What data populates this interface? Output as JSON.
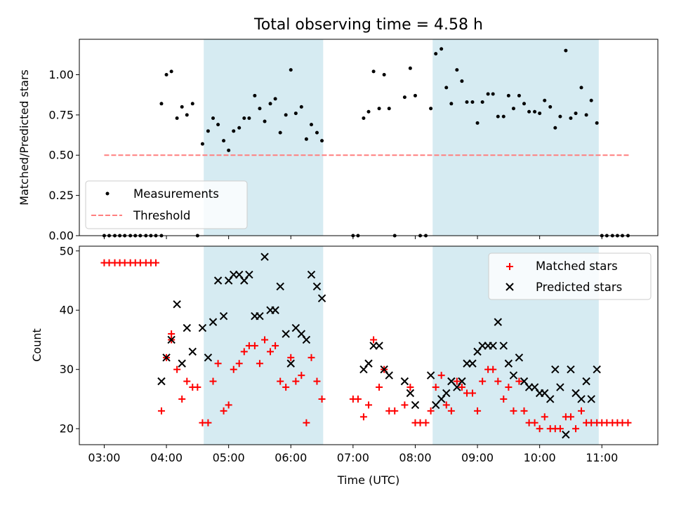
{
  "chart_data": [
    {
      "type": "scatter",
      "panel": "top",
      "title": "Total observing time = 4.58 h",
      "ylabel": "Matched/Predicted stars",
      "xlabel": "",
      "x_range_hours": [
        2.6,
        11.9
      ],
      "ylim": [
        0,
        1.22
      ],
      "yticks": [
        "0.00",
        "0.25",
        "0.50",
        "0.75",
        "1.00"
      ],
      "shaded_regions_hours": [
        [
          4.6,
          6.52
        ],
        [
          8.28,
          10.95
        ]
      ],
      "shade_color": "#add8e6",
      "legend_position": "lower left",
      "series": [
        {
          "name": "Measurements",
          "color": "#000000",
          "marker": "dot",
          "x_hours": [
            3.0,
            3.08,
            3.17,
            3.25,
            3.33,
            3.42,
            3.5,
            3.58,
            3.67,
            3.75,
            3.83,
            3.92,
            3.92,
            4.0,
            4.08,
            4.17,
            4.25,
            4.33,
            4.42,
            4.5,
            4.58,
            4.67,
            4.75,
            4.83,
            4.92,
            5.0,
            5.08,
            5.17,
            5.25,
            5.33,
            5.42,
            5.5,
            5.58,
            5.67,
            5.75,
            5.83,
            5.92,
            6.0,
            6.08,
            6.17,
            6.25,
            6.33,
            6.42,
            6.5,
            7.0,
            7.08,
            7.17,
            7.25,
            7.33,
            7.42,
            7.5,
            7.58,
            7.67,
            7.83,
            7.92,
            8.0,
            8.08,
            8.17,
            8.25,
            8.33,
            8.42,
            8.5,
            8.58,
            8.67,
            8.75,
            8.83,
            8.92,
            9.0,
            9.08,
            9.17,
            9.25,
            9.33,
            9.42,
            9.5,
            9.58,
            9.67,
            9.75,
            9.83,
            9.92,
            10.0,
            10.08,
            10.17,
            10.25,
            10.33,
            10.42,
            10.5,
            10.58,
            10.67,
            10.75,
            10.83,
            10.92,
            11.0,
            11.08,
            11.17,
            11.25,
            11.33,
            11.42
          ],
          "y": [
            0,
            0,
            0,
            0,
            0,
            0,
            0,
            0,
            0,
            0,
            0,
            0.82,
            0,
            1.0,
            1.02,
            0.73,
            0.8,
            0.75,
            0.82,
            0,
            0.57,
            0.65,
            0.73,
            0.69,
            0.59,
            0.53,
            0.65,
            0.67,
            0.73,
            0.73,
            0.87,
            0.79,
            0.71,
            0.82,
            0.85,
            0.64,
            0.75,
            1.03,
            0.76,
            0.8,
            0.6,
            0.69,
            0.64,
            0.59,
            0,
            0,
            0.73,
            0.77,
            1.02,
            0.79,
            1.0,
            0.79,
            0,
            0.86,
            1.04,
            0.87,
            0,
            0,
            0.79,
            1.13,
            1.16,
            0.92,
            0.82,
            1.03,
            0.96,
            0.83,
            0.83,
            0.7,
            0.83,
            0.88,
            0.88,
            0.74,
            0.74,
            0.87,
            0.79,
            0.87,
            0.82,
            0.77,
            0.77,
            0.76,
            0.84,
            0.8,
            0.67,
            0.74,
            1.15,
            0.73,
            0.76,
            0.92,
            0.75,
            0.84,
            0.7,
            0,
            0,
            0,
            0,
            0,
            0
          ]
        },
        {
          "name": "Threshold",
          "color": "#ff7f7f",
          "style": "dashed",
          "x_hours": [
            3.0,
            11.45
          ],
          "y": [
            0.5,
            0.5
          ]
        }
      ]
    },
    {
      "type": "scatter",
      "panel": "bottom",
      "title": "",
      "xlabel": "Time (UTC)",
      "ylabel": "Count",
      "x_range_hours": [
        2.6,
        11.9
      ],
      "xticks": [
        "03:00",
        "04:00",
        "05:00",
        "06:00",
        "07:00",
        "08:00",
        "09:00",
        "10:00",
        "11:00"
      ],
      "ylim": [
        17.3,
        50.8
      ],
      "yticks": [
        "20",
        "30",
        "40",
        "50"
      ],
      "shaded_regions_hours": [
        [
          4.6,
          6.52
        ],
        [
          8.28,
          10.95
        ]
      ],
      "shade_color": "#add8e6",
      "legend_position": "upper right",
      "series": [
        {
          "name": "Matched stars",
          "color": "#ff0000",
          "marker": "plus",
          "x_hours": [
            3.0,
            3.08,
            3.17,
            3.25,
            3.33,
            3.42,
            3.5,
            3.58,
            3.67,
            3.75,
            3.83,
            3.92,
            4.0,
            4.08,
            4.08,
            4.17,
            4.25,
            4.33,
            4.42,
            4.5,
            4.58,
            4.67,
            4.75,
            4.83,
            4.92,
            5.0,
            5.08,
            5.17,
            5.25,
            5.33,
            5.42,
            5.5,
            5.58,
            5.67,
            5.75,
            5.83,
            5.92,
            6.0,
            6.08,
            6.17,
            6.25,
            6.33,
            6.42,
            6.5,
            7.0,
            7.08,
            7.17,
            7.25,
            7.33,
            7.42,
            7.5,
            7.58,
            7.67,
            7.83,
            7.92,
            8.0,
            8.08,
            8.17,
            8.25,
            8.33,
            8.42,
            8.5,
            8.58,
            8.67,
            8.75,
            8.83,
            8.92,
            9.0,
            9.08,
            9.17,
            9.25,
            9.33,
            9.42,
            9.5,
            9.58,
            9.67,
            9.75,
            9.83,
            9.92,
            10.0,
            10.08,
            10.17,
            10.25,
            10.33,
            10.42,
            10.5,
            10.58,
            10.67,
            10.75,
            10.83,
            10.92,
            11.0,
            11.08,
            11.17,
            11.25,
            11.33,
            11.42
          ],
          "y": [
            48,
            48,
            48,
            48,
            48,
            48,
            48,
            48,
            48,
            48,
            48,
            23,
            32,
            36,
            35,
            30,
            25,
            28,
            27,
            27,
            21,
            21,
            28,
            31,
            23,
            24,
            30,
            31,
            33,
            34,
            34,
            31,
            35,
            33,
            34,
            28,
            27,
            32,
            28,
            29,
            21,
            32,
            28,
            25,
            25,
            25,
            22,
            24,
            35,
            27,
            30,
            23,
            23,
            24,
            27,
            21,
            21,
            21,
            23,
            27,
            29,
            24,
            23,
            28,
            27,
            26,
            26,
            23,
            28,
            30,
            30,
            28,
            25,
            27,
            23,
            28,
            23,
            21,
            21,
            20,
            22,
            20,
            20,
            20,
            22,
            22,
            20,
            23,
            21,
            21,
            21,
            21,
            21,
            21,
            21,
            21,
            21
          ]
        },
        {
          "name": "Predicted stars",
          "color": "#000000",
          "marker": "x",
          "x_hours": [
            3.92,
            4.0,
            4.08,
            4.17,
            4.25,
            4.33,
            4.42,
            4.58,
            4.67,
            4.75,
            4.83,
            4.92,
            5.0,
            5.08,
            5.17,
            5.25,
            5.33,
            5.42,
            5.5,
            5.58,
            5.67,
            5.75,
            5.83,
            5.92,
            6.0,
            6.08,
            6.17,
            6.25,
            6.33,
            6.42,
            6.5,
            7.17,
            7.25,
            7.33,
            7.42,
            7.5,
            7.58,
            7.83,
            7.92,
            8.0,
            8.25,
            8.33,
            8.42,
            8.5,
            8.58,
            8.67,
            8.75,
            8.83,
            8.92,
            9.0,
            9.08,
            9.17,
            9.25,
            9.33,
            9.42,
            9.5,
            9.58,
            9.67,
            9.75,
            9.83,
            9.92,
            10.0,
            10.08,
            10.17,
            10.25,
            10.33,
            10.42,
            10.5,
            10.58,
            10.67,
            10.75,
            10.83,
            10.92
          ],
          "y": [
            28,
            32,
            35,
            41,
            31,
            37,
            33,
            37,
            32,
            38,
            45,
            39,
            45,
            46,
            46,
            45,
            46,
            39,
            39,
            49,
            40,
            40,
            44,
            36,
            31,
            37,
            36,
            35,
            46,
            44,
            42,
            30,
            31,
            34,
            34,
            30,
            29,
            28,
            26,
            24,
            29,
            24,
            25,
            26,
            28,
            27,
            28,
            31,
            31,
            33,
            34,
            34,
            34,
            38,
            34,
            31,
            29,
            32,
            28,
            27,
            27,
            26,
            26,
            25,
            30,
            27,
            19,
            30,
            26,
            25,
            28,
            25,
            30
          ]
        }
      ]
    }
  ]
}
